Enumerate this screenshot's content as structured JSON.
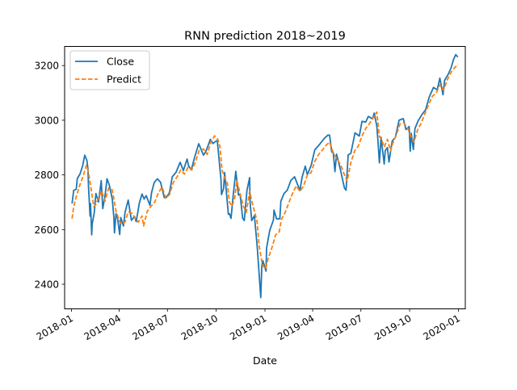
{
  "chart_data": {
    "type": "line",
    "title": "RNN prediction 2018~2019",
    "xlabel": "Date",
    "ylabel": "",
    "x_tick_labels": [
      "2018-01",
      "2018-04",
      "2018-07",
      "2018-10",
      "2019-01",
      "2019-04",
      "2019-07",
      "2019-10",
      "2020-01"
    ],
    "x_tick_dates": [
      "2018-01-01",
      "2018-04-01",
      "2018-07-01",
      "2018-10-01",
      "2019-01-01",
      "2019-04-01",
      "2019-07-01",
      "2019-10-01",
      "2020-01-01"
    ],
    "y_ticks": [
      2400,
      2600,
      2800,
      3000,
      3200
    ],
    "xlim": [
      "2017-12-19",
      "2020-01-14"
    ],
    "ylim": [
      2310,
      3270
    ],
    "grid": false,
    "legend_position": "upper-left",
    "series": [
      {
        "name": "Close",
        "color": "#1f77b4",
        "style": "solid",
        "points": [
          [
            "2018-01-02",
            2695
          ],
          [
            "2018-01-05",
            2743
          ],
          [
            "2018-01-10",
            2748
          ],
          [
            "2018-01-12",
            2787
          ],
          [
            "2018-01-17",
            2803
          ],
          [
            "2018-01-22",
            2833
          ],
          [
            "2018-01-26",
            2872
          ],
          [
            "2018-01-30",
            2853
          ],
          [
            "2018-02-01",
            2821
          ],
          [
            "2018-02-02",
            2762
          ],
          [
            "2018-02-05",
            2649
          ],
          [
            "2018-02-06",
            2695
          ],
          [
            "2018-02-08",
            2581
          ],
          [
            "2018-02-09",
            2620
          ],
          [
            "2018-02-13",
            2662
          ],
          [
            "2018-02-16",
            2732
          ],
          [
            "2018-02-21",
            2701
          ],
          [
            "2018-02-26",
            2779
          ],
          [
            "2018-03-01",
            2677
          ],
          [
            "2018-03-05",
            2721
          ],
          [
            "2018-03-09",
            2786
          ],
          [
            "2018-03-13",
            2765
          ],
          [
            "2018-03-19",
            2712
          ],
          [
            "2018-03-22",
            2643
          ],
          [
            "2018-03-23",
            2588
          ],
          [
            "2018-03-26",
            2658
          ],
          [
            "2018-03-29",
            2640
          ],
          [
            "2018-04-02",
            2582
          ],
          [
            "2018-04-04",
            2644
          ],
          [
            "2018-04-09",
            2613
          ],
          [
            "2018-04-12",
            2663
          ],
          [
            "2018-04-18",
            2708
          ],
          [
            "2018-04-24",
            2634
          ],
          [
            "2018-04-30",
            2648
          ],
          [
            "2018-05-03",
            2629
          ],
          [
            "2018-05-09",
            2697
          ],
          [
            "2018-05-14",
            2730
          ],
          [
            "2018-05-18",
            2712
          ],
          [
            "2018-05-22",
            2724
          ],
          [
            "2018-05-29",
            2689
          ],
          [
            "2018-06-01",
            2735
          ],
          [
            "2018-06-06",
            2772
          ],
          [
            "2018-06-12",
            2786
          ],
          [
            "2018-06-18",
            2773
          ],
          [
            "2018-06-25",
            2717
          ],
          [
            "2018-06-29",
            2718
          ],
          [
            "2018-07-05",
            2736
          ],
          [
            "2018-07-10",
            2793
          ],
          [
            "2018-07-17",
            2809
          ],
          [
            "2018-07-25",
            2846
          ],
          [
            "2018-07-31",
            2816
          ],
          [
            "2018-08-07",
            2858
          ],
          [
            "2018-08-10",
            2833
          ],
          [
            "2018-08-15",
            2818
          ],
          [
            "2018-08-21",
            2862
          ],
          [
            "2018-08-29",
            2914
          ],
          [
            "2018-09-07",
            2872
          ],
          [
            "2018-09-12",
            2888
          ],
          [
            "2018-09-20",
            2930
          ],
          [
            "2018-09-25",
            2915
          ],
          [
            "2018-10-01",
            2924
          ],
          [
            "2018-10-03",
            2925
          ],
          [
            "2018-10-05",
            2885
          ],
          [
            "2018-10-10",
            2785
          ],
          [
            "2018-10-11",
            2728
          ],
          [
            "2018-10-15",
            2750
          ],
          [
            "2018-10-17",
            2809
          ],
          [
            "2018-10-24",
            2656
          ],
          [
            "2018-10-26",
            2658
          ],
          [
            "2018-10-29",
            2641
          ],
          [
            "2018-11-02",
            2723
          ],
          [
            "2018-11-07",
            2813
          ],
          [
            "2018-11-12",
            2726
          ],
          [
            "2018-11-15",
            2730
          ],
          [
            "2018-11-20",
            2641
          ],
          [
            "2018-11-23",
            2633
          ],
          [
            "2018-11-28",
            2743
          ],
          [
            "2018-12-03",
            2790
          ],
          [
            "2018-12-04",
            2700
          ],
          [
            "2018-12-07",
            2633
          ],
          [
            "2018-12-12",
            2651
          ],
          [
            "2018-12-17",
            2545
          ],
          [
            "2018-12-20",
            2467
          ],
          [
            "2018-12-24",
            2351
          ],
          [
            "2018-12-26",
            2467
          ],
          [
            "2018-12-28",
            2486
          ],
          [
            "2019-01-03",
            2448
          ],
          [
            "2019-01-04",
            2532
          ],
          [
            "2019-01-10",
            2597
          ],
          [
            "2019-01-17",
            2635
          ],
          [
            "2019-01-18",
            2671
          ],
          [
            "2019-01-23",
            2639
          ],
          [
            "2019-01-29",
            2640
          ],
          [
            "2019-01-31",
            2704
          ],
          [
            "2019-02-06",
            2732
          ],
          [
            "2019-02-12",
            2744
          ],
          [
            "2019-02-19",
            2780
          ],
          [
            "2019-02-26",
            2793
          ],
          [
            "2019-03-08",
            2743
          ],
          [
            "2019-03-12",
            2791
          ],
          [
            "2019-03-18",
            2832
          ],
          [
            "2019-03-22",
            2801
          ],
          [
            "2019-03-29",
            2834
          ],
          [
            "2019-04-05",
            2892
          ],
          [
            "2019-04-12",
            2907
          ],
          [
            "2019-04-23",
            2934
          ],
          [
            "2019-04-30",
            2946
          ],
          [
            "2019-05-03",
            2945
          ],
          [
            "2019-05-07",
            2884
          ],
          [
            "2019-05-10",
            2881
          ],
          [
            "2019-05-13",
            2812
          ],
          [
            "2019-05-16",
            2876
          ],
          [
            "2019-05-23",
            2822
          ],
          [
            "2019-05-31",
            2752
          ],
          [
            "2019-06-03",
            2744
          ],
          [
            "2019-06-07",
            2873
          ],
          [
            "2019-06-12",
            2879
          ],
          [
            "2019-06-20",
            2954
          ],
          [
            "2019-06-28",
            2942
          ],
          [
            "2019-07-03",
            2996
          ],
          [
            "2019-07-10",
            2993
          ],
          [
            "2019-07-15",
            3014
          ],
          [
            "2019-07-23",
            3005
          ],
          [
            "2019-07-26",
            3026
          ],
          [
            "2019-07-31",
            2980
          ],
          [
            "2019-08-02",
            2932
          ],
          [
            "2019-08-05",
            2844
          ],
          [
            "2019-08-08",
            2938
          ],
          [
            "2019-08-14",
            2840
          ],
          [
            "2019-08-16",
            2889
          ],
          [
            "2019-08-20",
            2900
          ],
          [
            "2019-08-23",
            2847
          ],
          [
            "2019-08-29",
            2924
          ],
          [
            "2019-09-04",
            2937
          ],
          [
            "2019-09-11",
            3000
          ],
          [
            "2019-09-19",
            3006
          ],
          [
            "2019-09-24",
            2966
          ],
          [
            "2019-09-30",
            2977
          ],
          [
            "2019-10-02",
            2887
          ],
          [
            "2019-10-04",
            2952
          ],
          [
            "2019-10-08",
            2893
          ],
          [
            "2019-10-11",
            2970
          ],
          [
            "2019-10-17",
            2998
          ],
          [
            "2019-10-25",
            3023
          ],
          [
            "2019-10-31",
            3038
          ],
          [
            "2019-11-07",
            3085
          ],
          [
            "2019-11-15",
            3120
          ],
          [
            "2019-11-22",
            3111
          ],
          [
            "2019-11-27",
            3154
          ],
          [
            "2019-12-03",
            3093
          ],
          [
            "2019-12-06",
            3146
          ],
          [
            "2019-12-13",
            3169
          ],
          [
            "2019-12-18",
            3191
          ],
          [
            "2019-12-23",
            3224
          ],
          [
            "2019-12-27",
            3240
          ],
          [
            "2019-12-31",
            3231
          ]
        ]
      },
      {
        "name": "Predict",
        "color": "#ff7f0e",
        "style": "dashed",
        "points": [
          [
            "2018-01-02",
            2640
          ],
          [
            "2018-01-05",
            2683
          ],
          [
            "2018-01-10",
            2720
          ],
          [
            "2018-01-16",
            2760
          ],
          [
            "2018-01-22",
            2790
          ],
          [
            "2018-01-29",
            2835
          ],
          [
            "2018-02-02",
            2810
          ],
          [
            "2018-02-07",
            2748
          ],
          [
            "2018-02-12",
            2683
          ],
          [
            "2018-02-16",
            2692
          ],
          [
            "2018-02-21",
            2716
          ],
          [
            "2018-02-27",
            2740
          ],
          [
            "2018-03-05",
            2704
          ],
          [
            "2018-03-12",
            2752
          ],
          [
            "2018-03-19",
            2745
          ],
          [
            "2018-03-26",
            2668
          ],
          [
            "2018-04-02",
            2628
          ],
          [
            "2018-04-06",
            2620
          ],
          [
            "2018-04-12",
            2628
          ],
          [
            "2018-04-18",
            2665
          ],
          [
            "2018-04-25",
            2660
          ],
          [
            "2018-05-02",
            2640
          ],
          [
            "2018-05-07",
            2627
          ],
          [
            "2018-05-14",
            2650
          ],
          [
            "2018-05-17",
            2613
          ],
          [
            "2018-05-24",
            2667
          ],
          [
            "2018-05-31",
            2685
          ],
          [
            "2018-06-07",
            2700
          ],
          [
            "2018-06-14",
            2735
          ],
          [
            "2018-06-21",
            2755
          ],
          [
            "2018-06-28",
            2715
          ],
          [
            "2018-07-05",
            2728
          ],
          [
            "2018-07-12",
            2772
          ],
          [
            "2018-07-19",
            2792
          ],
          [
            "2018-07-26",
            2818
          ],
          [
            "2018-08-02",
            2803
          ],
          [
            "2018-08-09",
            2828
          ],
          [
            "2018-08-16",
            2818
          ],
          [
            "2018-08-23",
            2848
          ],
          [
            "2018-08-30",
            2890
          ],
          [
            "2018-09-07",
            2895
          ],
          [
            "2018-09-14",
            2875
          ],
          [
            "2018-09-21",
            2920
          ],
          [
            "2018-09-28",
            2943
          ],
          [
            "2018-10-04",
            2930
          ],
          [
            "2018-10-08",
            2905
          ],
          [
            "2018-10-12",
            2818
          ],
          [
            "2018-10-17",
            2790
          ],
          [
            "2018-10-22",
            2770
          ],
          [
            "2018-10-26",
            2700
          ],
          [
            "2018-10-31",
            2686
          ],
          [
            "2018-11-05",
            2716
          ],
          [
            "2018-11-09",
            2780
          ],
          [
            "2018-11-14",
            2740
          ],
          [
            "2018-11-21",
            2686
          ],
          [
            "2018-11-27",
            2663
          ],
          [
            "2018-12-03",
            2740
          ],
          [
            "2018-12-07",
            2705
          ],
          [
            "2018-12-12",
            2668
          ],
          [
            "2018-12-17",
            2630
          ],
          [
            "2018-12-21",
            2541
          ],
          [
            "2018-12-27",
            2472
          ],
          [
            "2019-01-02",
            2455
          ],
          [
            "2019-01-07",
            2494
          ],
          [
            "2019-01-14",
            2533
          ],
          [
            "2019-01-21",
            2580
          ],
          [
            "2019-01-28",
            2592
          ],
          [
            "2019-02-01",
            2637
          ],
          [
            "2019-02-08",
            2662
          ],
          [
            "2019-02-15",
            2698
          ],
          [
            "2019-02-22",
            2732
          ],
          [
            "2019-03-01",
            2760
          ],
          [
            "2019-03-08",
            2740
          ],
          [
            "2019-03-15",
            2760
          ],
          [
            "2019-03-22",
            2800
          ],
          [
            "2019-03-29",
            2808
          ],
          [
            "2019-04-05",
            2850
          ],
          [
            "2019-04-12",
            2874
          ],
          [
            "2019-04-19",
            2890
          ],
          [
            "2019-04-26",
            2908
          ],
          [
            "2019-05-03",
            2920
          ],
          [
            "2019-05-10",
            2880
          ],
          [
            "2019-05-17",
            2858
          ],
          [
            "2019-05-24",
            2836
          ],
          [
            "2019-05-31",
            2800
          ],
          [
            "2019-06-05",
            2777
          ],
          [
            "2019-06-12",
            2845
          ],
          [
            "2019-06-19",
            2887
          ],
          [
            "2019-06-26",
            2905
          ],
          [
            "2019-07-03",
            2942
          ],
          [
            "2019-07-10",
            2970
          ],
          [
            "2019-07-17",
            2987
          ],
          [
            "2019-07-24",
            3008
          ],
          [
            "2019-07-31",
            3030
          ],
          [
            "2019-08-05",
            2940
          ],
          [
            "2019-08-09",
            2930
          ],
          [
            "2019-08-14",
            2902
          ],
          [
            "2019-08-20",
            2930
          ],
          [
            "2019-08-26",
            2888
          ],
          [
            "2019-08-30",
            2915
          ],
          [
            "2019-09-06",
            2947
          ],
          [
            "2019-09-13",
            2987
          ],
          [
            "2019-09-20",
            2990
          ],
          [
            "2019-09-27",
            2972
          ],
          [
            "2019-10-03",
            2942
          ],
          [
            "2019-10-09",
            2920
          ],
          [
            "2019-10-16",
            2965
          ],
          [
            "2019-10-23",
            2990
          ],
          [
            "2019-10-30",
            3025
          ],
          [
            "2019-11-06",
            3058
          ],
          [
            "2019-11-13",
            3088
          ],
          [
            "2019-11-20",
            3099
          ],
          [
            "2019-11-27",
            3130
          ],
          [
            "2019-12-04",
            3110
          ],
          [
            "2019-12-11",
            3148
          ],
          [
            "2019-12-18",
            3175
          ],
          [
            "2019-12-24",
            3190
          ],
          [
            "2019-12-31",
            3205
          ]
        ]
      }
    ]
  }
}
